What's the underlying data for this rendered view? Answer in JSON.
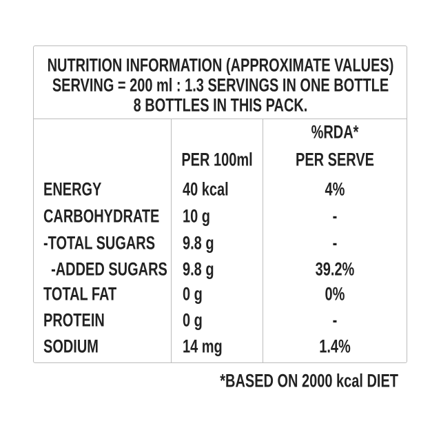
{
  "title": [
    "NUTRITION INFORMATION (APPROXIMATE VALUES)",
    "SERVING = 200 ml : 1.3 SERVINGS IN ONE BOTTLE",
    "8 BOTTLES IN THIS PACK."
  ],
  "table": {
    "header": [
      "PER 100ml",
      "%RDA*",
      "PER SERVE"
    ],
    "rows": [
      [
        "ENERGY",
        "40 kcal",
        "4%"
      ],
      [
        "CARBOHYDRATE",
        "10 g",
        "-"
      ],
      [
        "-TOTAL SUGARS",
        "9.8 g",
        "-"
      ],
      [
        "  -ADDED SUGARS",
        "9.8 g",
        "39.2%"
      ],
      [
        "TOTAL FAT",
        "0 g",
        "0%"
      ],
      [
        "PROTEIN",
        "0 g",
        "-"
      ],
      [
        "SODIUM",
        "14 mg",
        "1.4%"
      ]
    ]
  },
  "footnote": "*BASED ON 2000 kcal DIET"
}
